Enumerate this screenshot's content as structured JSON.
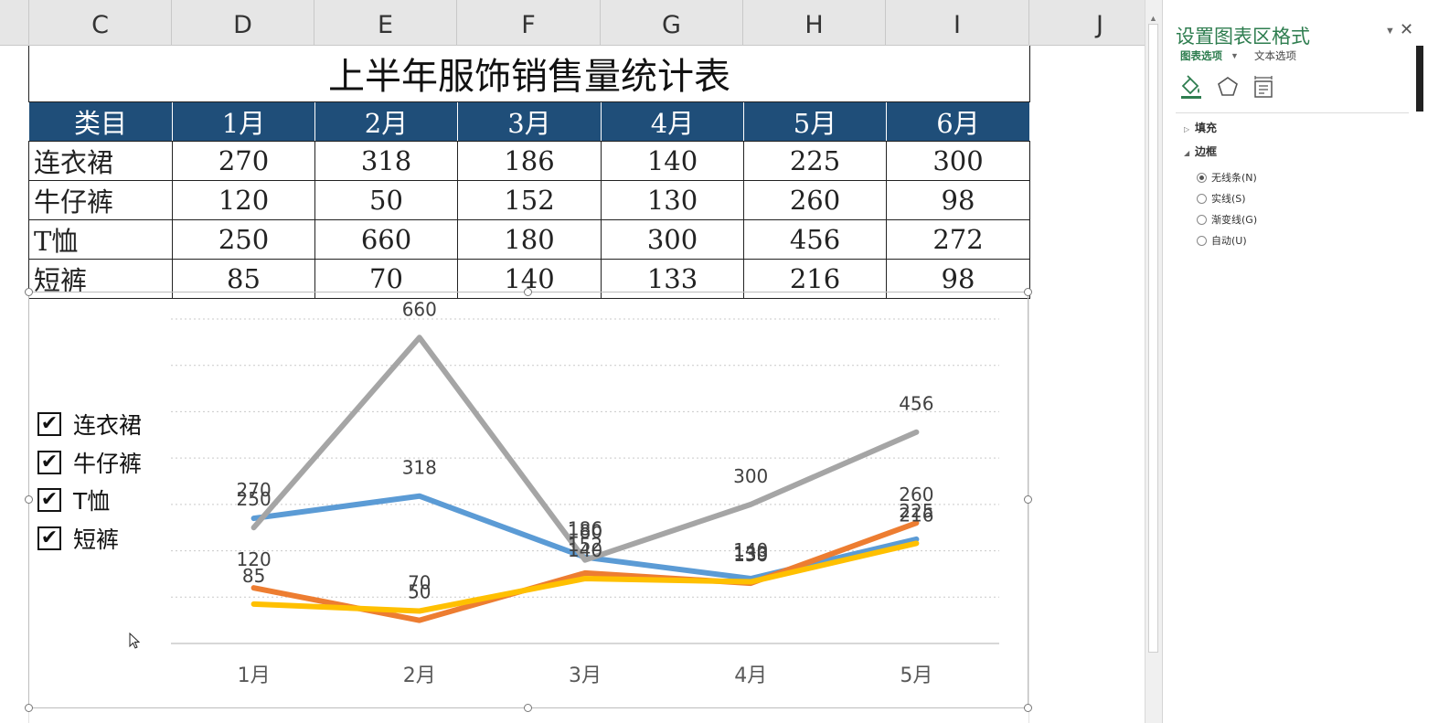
{
  "columns": [
    "C",
    "D",
    "E",
    "F",
    "G",
    "H",
    "I",
    "J"
  ],
  "table": {
    "title": "上半年服饰销售量统计表",
    "header": [
      "类目",
      "1月",
      "2月",
      "3月",
      "4月",
      "5月",
      "6月"
    ],
    "rows": [
      {
        "name": "连衣裙",
        "values": [
          "270",
          "318",
          "186",
          "140",
          "225",
          "300"
        ]
      },
      {
        "name": "牛仔裤",
        "values": [
          "120",
          "50",
          "152",
          "130",
          "260",
          "98"
        ]
      },
      {
        "name": "T恤",
        "values": [
          "250",
          "660",
          "180",
          "300",
          "456",
          "272"
        ]
      },
      {
        "name": "短裤",
        "values": [
          "85",
          "70",
          "140",
          "133",
          "216",
          "98"
        ]
      }
    ]
  },
  "chart_data": {
    "type": "line",
    "categories": [
      "1月",
      "2月",
      "3月",
      "4月",
      "5月"
    ],
    "ylim": [
      0,
      700
    ],
    "grid": true,
    "legend_position": "left",
    "series": [
      {
        "name": "连衣裙",
        "color": "#5b9bd5",
        "values": [
          270,
          318,
          186,
          140,
          225
        ],
        "labels": [
          "270",
          "318",
          "186",
          "140",
          "225"
        ]
      },
      {
        "name": "牛仔裤",
        "color": "#ed7d31",
        "values": [
          120,
          50,
          152,
          130,
          260
        ],
        "labels": [
          "120",
          "50",
          "152",
          "130",
          "260"
        ]
      },
      {
        "name": "T恤",
        "color": "#a5a5a5",
        "values": [
          250,
          660,
          180,
          300,
          456
        ],
        "labels": [
          "250",
          "660",
          "180",
          "300",
          "456"
        ]
      },
      {
        "name": "短裤",
        "color": "#ffc000",
        "values": [
          85,
          70,
          140,
          133,
          216
        ],
        "labels": [
          "85",
          "70",
          "140",
          "133",
          "216"
        ]
      }
    ]
  },
  "legend": {
    "items": [
      {
        "label": "连衣裙",
        "check": "✔"
      },
      {
        "label": "牛仔裤",
        "check": "✔"
      },
      {
        "label": "T恤",
        "check": "✔"
      },
      {
        "label": "短裤",
        "check": "✔"
      }
    ]
  },
  "pane": {
    "title": "设置图表区格式",
    "dropdown_icon": "▼",
    "close_icon": "✕",
    "tab_chart_options": "图表选项",
    "tab_chart_options_arrow": "▼",
    "tab_text_options": "文本选项",
    "icons": [
      "fill-line-icon",
      "effects-icon",
      "size-properties-icon"
    ],
    "sections": {
      "fill": {
        "label": "填充",
        "arrow": "▷"
      },
      "border": {
        "label": "边框",
        "arrow": "◢"
      }
    },
    "border_options": [
      {
        "label": "无线条(N)",
        "selected": true
      },
      {
        "label": "实线(S)",
        "selected": false
      },
      {
        "label": "渐变线(G)",
        "selected": false
      },
      {
        "label": "自动(U)",
        "selected": false
      }
    ]
  },
  "scrollbar": {
    "up_arrow": "▲"
  }
}
